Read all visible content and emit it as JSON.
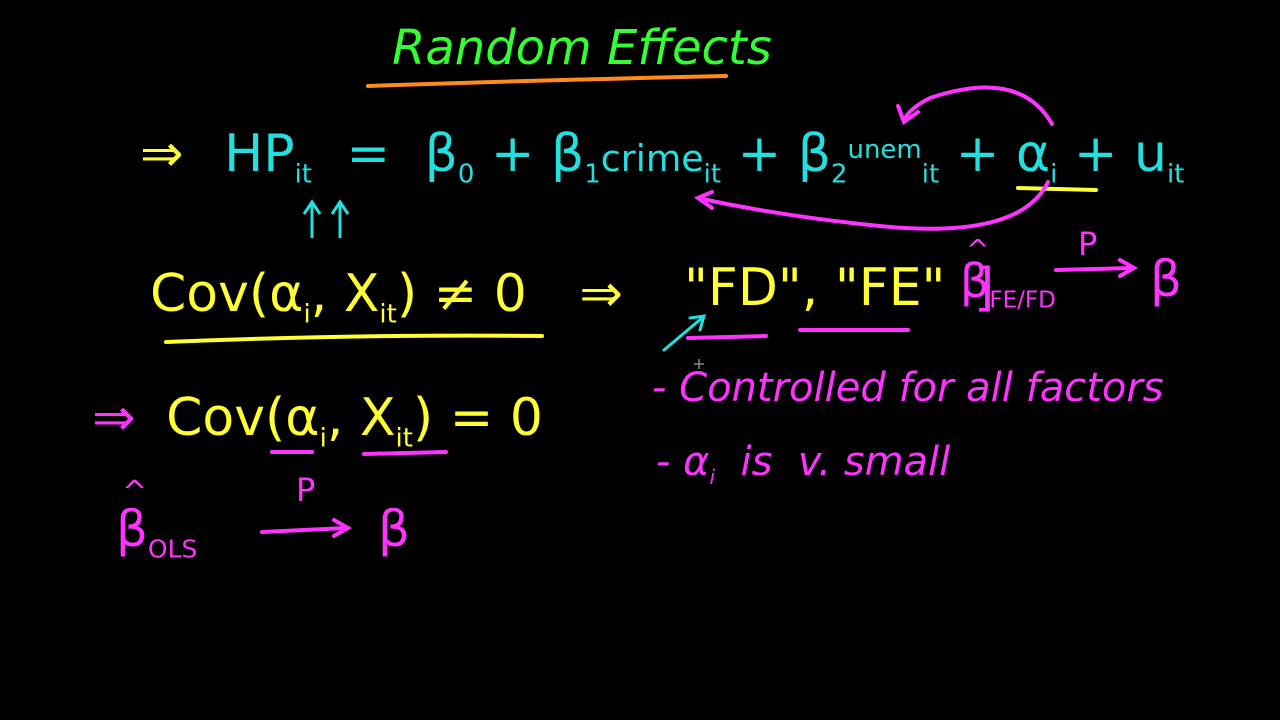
{
  "title": "Random Effects",
  "equation": {
    "arrow": "⇒",
    "lhs": "HP",
    "lhs_sub": "it",
    "equals": "=",
    "b0": "β",
    "b0_sub": "0",
    "plus1": "+",
    "b1": "β",
    "b1_sub": "1",
    "var1": "crime",
    "var1_sub": "it",
    "plus2": "+",
    "b2": "β",
    "b2_sub": "2",
    "var2": "unem",
    "var2_sub": "it",
    "plus3": "+",
    "alpha": "α",
    "alpha_sub": "i",
    "plus4": "+",
    "u": "u",
    "u_sub": "it"
  },
  "cov_nonzero": {
    "text": "Cov(α",
    "sub_i": "i",
    "mid": ", X",
    "sub_it": "it",
    "rest": ") ≠ 0",
    "arrow": "⇒",
    "fd": "\"FD\"",
    "comma": ",",
    "fe": "\"FE\"",
    "bracket": "]"
  },
  "beta_fe": {
    "hat": "^",
    "beta": "β",
    "sub": "FE/FD",
    "p": "P",
    "target": "β"
  },
  "cov_zero": {
    "arrow": "⇒",
    "text": "Cov(α",
    "sub_i": "i",
    "mid": ", X",
    "sub_it": "it",
    "rest": ") = 0"
  },
  "notes": {
    "line1": "- Controlled for all factors",
    "line2_dash": "- α",
    "line2_sub": "i",
    "line2_rest": "  is  v. small"
  },
  "beta_ols": {
    "hat": "^",
    "beta": "β",
    "sub": "OLS",
    "p": "P",
    "target": "β"
  },
  "colors": {
    "title": "#33ff33",
    "underline_orange": "#ff8c1a",
    "cyan": "#22e0e0",
    "yellow": "#ffff33",
    "magenta": "#ff33ff"
  }
}
